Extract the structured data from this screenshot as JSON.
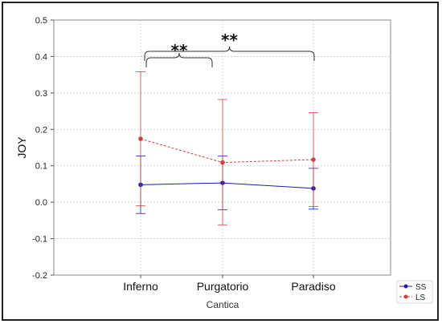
{
  "chart_data": {
    "type": "line",
    "xlabel": "Cantica",
    "ylabel": "JOY",
    "categories": [
      "Inferno",
      "Purgatorio",
      "Paradiso"
    ],
    "ylim": [
      -0.2,
      0.5
    ],
    "yticks": [
      "0.5",
      "0.4",
      "0.3",
      "0.2",
      "0.1",
      "0.0",
      "-0.1",
      "-0.2"
    ],
    "grid": true,
    "legend": "bottom-right",
    "series": [
      {
        "name": "SS",
        "color": "#1f1fa8",
        "line_style": "solid",
        "values": [
          0.048,
          0.053,
          0.038
        ],
        "err_low": [
          -0.031,
          -0.021,
          -0.019
        ],
        "err_high": [
          0.127,
          0.127,
          0.093
        ]
      },
      {
        "name": "LS",
        "color": "#d04040",
        "line_style": "dashed",
        "values": [
          0.174,
          0.109,
          0.117
        ],
        "err_low": [
          -0.01,
          -0.062,
          -0.012
        ],
        "err_high": [
          0.358,
          0.282,
          0.246
        ]
      }
    ],
    "annotations": [
      {
        "text": "**",
        "from": "Inferno",
        "to": "Purgatorio"
      },
      {
        "text": "**",
        "from": "Inferno",
        "to": "Paradiso"
      }
    ]
  }
}
